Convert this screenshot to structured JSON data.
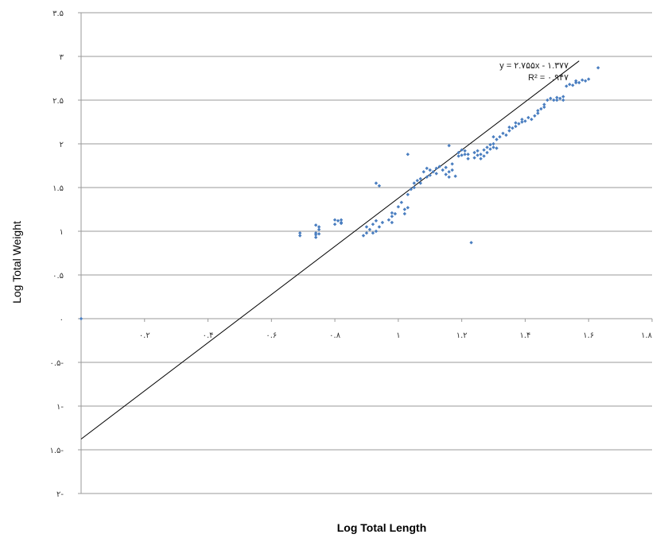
{
  "chart_data": {
    "type": "scatter",
    "title": "",
    "xlabel": "Log Total Length",
    "ylabel": "Log Total Weight",
    "xlim": [
      0,
      1.8
    ],
    "ylim": [
      -2,
      3.5
    ],
    "grid": true,
    "series_color": "#4a7ec0",
    "trendline_color": "#000000",
    "x_ticks": [
      {
        "value": 0.2,
        "label": "۰.۲"
      },
      {
        "value": 0.4,
        "label": "۰.۴"
      },
      {
        "value": 0.6,
        "label": "۰.۶"
      },
      {
        "value": 0.8,
        "label": "۰.۸"
      },
      {
        "value": 1.0,
        "label": "۱"
      },
      {
        "value": 1.2,
        "label": "۱.۲"
      },
      {
        "value": 1.4,
        "label": "۱.۴"
      },
      {
        "value": 1.6,
        "label": "۱.۶"
      },
      {
        "value": 1.8,
        "label": "۱.۸"
      }
    ],
    "y_ticks": [
      {
        "value": 3.5,
        "label": "۳.۵"
      },
      {
        "value": 3.0,
        "label": "۳"
      },
      {
        "value": 2.5,
        "label": "۲.۵"
      },
      {
        "value": 2.0,
        "label": "۲"
      },
      {
        "value": 1.5,
        "label": "۱.۵"
      },
      {
        "value": 1.0,
        "label": "۱"
      },
      {
        "value": 0.5,
        "label": "۰.۵"
      },
      {
        "value": 0.0,
        "label": "۰"
      },
      {
        "value": -0.5,
        "label": "۰.۵-"
      },
      {
        "value": -1.0,
        "label": "۱-"
      },
      {
        "value": -1.5,
        "label": "۱.۵-"
      },
      {
        "value": -2.0,
        "label": "۲-"
      }
    ],
    "trendline": {
      "slope": 2.755,
      "intercept": -1.377,
      "x_range": [
        0,
        1.57
      ],
      "equation": "y = ۲.۷۵۵x - ۱.۳۷۷",
      "r_squared": "R² = ۰.۹۴۷"
    },
    "points": [
      [
        0.0,
        0.0
      ],
      [
        0.69,
        0.95
      ],
      [
        0.69,
        0.98
      ],
      [
        0.74,
        0.93
      ],
      [
        0.74,
        0.96
      ],
      [
        0.74,
        0.98
      ],
      [
        0.75,
        0.97
      ],
      [
        0.75,
        1.02
      ],
      [
        0.75,
        1.05
      ],
      [
        0.74,
        1.07
      ],
      [
        0.8,
        1.08
      ],
      [
        0.81,
        1.12
      ],
      [
        0.82,
        1.09
      ],
      [
        0.82,
        1.13
      ],
      [
        0.8,
        1.13
      ],
      [
        0.82,
        1.1
      ],
      [
        0.89,
        0.95
      ],
      [
        0.9,
        0.98
      ],
      [
        0.9,
        1.05
      ],
      [
        0.91,
        1.02
      ],
      [
        0.92,
        0.98
      ],
      [
        0.93,
        1.0
      ],
      [
        0.92,
        1.08
      ],
      [
        0.93,
        1.12
      ],
      [
        0.94,
        1.05
      ],
      [
        0.95,
        1.1
      ],
      [
        0.97,
        1.13
      ],
      [
        0.98,
        1.17
      ],
      [
        0.98,
        1.21
      ],
      [
        0.99,
        1.2
      ],
      [
        0.98,
        1.1
      ],
      [
        0.93,
        1.55
      ],
      [
        0.94,
        1.52
      ],
      [
        1.0,
        1.28
      ],
      [
        1.01,
        1.33
      ],
      [
        1.02,
        1.2
      ],
      [
        1.02,
        1.25
      ],
      [
        1.03,
        1.27
      ],
      [
        1.03,
        1.88
      ],
      [
        1.03,
        1.42
      ],
      [
        1.04,
        1.48
      ],
      [
        1.05,
        1.5
      ],
      [
        1.05,
        1.55
      ],
      [
        1.06,
        1.58
      ],
      [
        1.07,
        1.55
      ],
      [
        1.07,
        1.6
      ],
      [
        1.08,
        1.68
      ],
      [
        1.09,
        1.72
      ],
      [
        1.09,
        1.62
      ],
      [
        1.1,
        1.64
      ],
      [
        1.1,
        1.7
      ],
      [
        1.11,
        1.68
      ],
      [
        1.12,
        1.66
      ],
      [
        1.12,
        1.72
      ],
      [
        1.13,
        1.74
      ],
      [
        1.14,
        1.7
      ],
      [
        1.15,
        1.65
      ],
      [
        1.15,
        1.73
      ],
      [
        1.16,
        1.62
      ],
      [
        1.16,
        1.68
      ],
      [
        1.17,
        1.7
      ],
      [
        1.17,
        1.77
      ],
      [
        1.18,
        1.63
      ],
      [
        1.16,
        1.98
      ],
      [
        1.19,
        1.86
      ],
      [
        1.19,
        1.9
      ],
      [
        1.2,
        1.93
      ],
      [
        1.2,
        1.87
      ],
      [
        1.21,
        1.88
      ],
      [
        1.21,
        1.92
      ],
      [
        1.22,
        1.88
      ],
      [
        1.22,
        1.83
      ],
      [
        1.24,
        1.9
      ],
      [
        1.24,
        1.84
      ],
      [
        1.25,
        1.87
      ],
      [
        1.25,
        1.92
      ],
      [
        1.26,
        1.88
      ],
      [
        1.26,
        1.83
      ],
      [
        1.27,
        1.86
      ],
      [
        1.27,
        1.93
      ],
      [
        1.28,
        1.9
      ],
      [
        1.28,
        1.96
      ],
      [
        1.29,
        1.94
      ],
      [
        1.29,
        1.99
      ],
      [
        1.3,
        1.96
      ],
      [
        1.3,
        2.0
      ],
      [
        1.31,
        1.95
      ],
      [
        1.31,
        2.05
      ],
      [
        1.3,
        2.08
      ],
      [
        1.32,
        2.08
      ],
      [
        1.33,
        2.12
      ],
      [
        1.34,
        2.1
      ],
      [
        1.35,
        2.15
      ],
      [
        1.35,
        2.19
      ],
      [
        1.36,
        2.18
      ],
      [
        1.37,
        2.2
      ],
      [
        1.37,
        2.24
      ],
      [
        1.38,
        2.23
      ],
      [
        1.39,
        2.25
      ],
      [
        1.39,
        2.28
      ],
      [
        1.4,
        2.26
      ],
      [
        1.41,
        2.3
      ],
      [
        1.42,
        2.28
      ],
      [
        1.43,
        2.32
      ],
      [
        1.44,
        2.35
      ],
      [
        1.44,
        2.38
      ],
      [
        1.45,
        2.4
      ],
      [
        1.46,
        2.45
      ],
      [
        1.46,
        2.42
      ],
      [
        1.47,
        2.5
      ],
      [
        1.48,
        2.52
      ],
      [
        1.49,
        2.5
      ],
      [
        1.5,
        2.53
      ],
      [
        1.5,
        2.5
      ],
      [
        1.51,
        2.52
      ],
      [
        1.52,
        2.54
      ],
      [
        1.52,
        2.5
      ],
      [
        1.53,
        2.66
      ],
      [
        1.54,
        2.68
      ],
      [
        1.55,
        2.67
      ],
      [
        1.56,
        2.7
      ],
      [
        1.56,
        2.72
      ],
      [
        1.57,
        2.7
      ],
      [
        1.58,
        2.73
      ],
      [
        1.59,
        2.72
      ],
      [
        1.6,
        2.74
      ],
      [
        1.63,
        2.87
      ],
      [
        1.23,
        0.87
      ]
    ]
  }
}
